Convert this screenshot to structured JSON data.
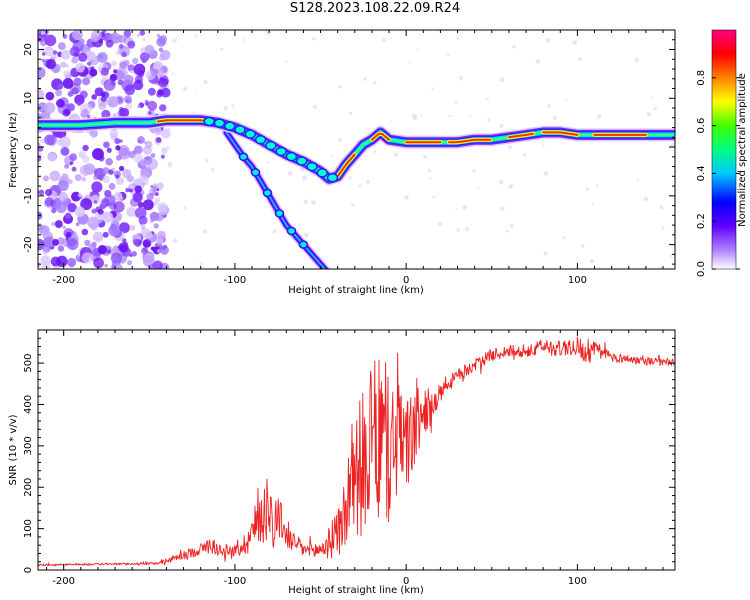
{
  "title": "S128.2023.108.22.09.R24",
  "chart_data": [
    {
      "type": "heatmap",
      "xlabel": "Height of straight line (km)",
      "ylabel": "Frequency (Hz)",
      "xlim": [
        -215,
        157
      ],
      "ylim": [
        -25,
        24
      ],
      "x_ticks": [
        -200,
        -100,
        0,
        100
      ],
      "y_ticks": [
        -20,
        -10,
        0,
        10,
        20
      ],
      "colorbar": {
        "label": "Normalized spectral amplitude",
        "range": [
          0,
          1
        ],
        "ticks": [
          0.0,
          0.2,
          0.4,
          0.6,
          0.8
        ],
        "colors": [
          "#ffffff",
          "#7a00ff",
          "#0000ff",
          "#00ffff",
          "#00ff00",
          "#ffff00",
          "#ff8000",
          "#ff0000",
          "#ff0080"
        ]
      },
      "main_track": {
        "x": [
          -215,
          -190,
          -170,
          -150,
          -140,
          -120,
          -110,
          -100,
          -90,
          -80,
          -70,
          -60,
          -50,
          -45,
          -40,
          -35,
          -30,
          -25,
          -20,
          -15,
          -10,
          0,
          10,
          20,
          30,
          40,
          50,
          60,
          70,
          80,
          90,
          100,
          110,
          120,
          130,
          140,
          157
        ],
        "y": [
          4.5,
          4.5,
          5,
          5,
          5.5,
          5.5,
          5,
          4,
          2.5,
          0.5,
          -1.5,
          -3,
          -5,
          -6.5,
          -6,
          -3.5,
          -1.5,
          0.5,
          1.5,
          3,
          1.5,
          1,
          1,
          1,
          1,
          1.5,
          1.5,
          2,
          2.5,
          3,
          3,
          2.5,
          2.5,
          2.5,
          2.5,
          2.5,
          2.5
        ]
      },
      "branch_track": {
        "x": [
          -105,
          -100,
          -95,
          -90,
          -85,
          -80,
          -75,
          -70,
          -65,
          -60,
          -55,
          -50,
          -45
        ],
        "y": [
          3,
          0.5,
          -2,
          -4,
          -7,
          -10,
          -13,
          -16,
          -18,
          -20,
          -22,
          -24,
          -26
        ]
      }
    },
    {
      "type": "line",
      "xlabel": "Height of straight line (km)",
      "ylabel": "SNR (10 * v/v)",
      "xlim": [
        -215,
        157
      ],
      "ylim": [
        0,
        580
      ],
      "x_ticks": [
        -200,
        -100,
        0,
        100
      ],
      "y_ticks": [
        0,
        100,
        200,
        300,
        400,
        500
      ],
      "color": "#ee2222",
      "x": [
        -215,
        -200,
        -180,
        -160,
        -145,
        -140,
        -130,
        -120,
        -115,
        -110,
        -100,
        -95,
        -90,
        -85,
        -80,
        -78,
        -75,
        -72,
        -70,
        -65,
        -60,
        -55,
        -50,
        -45,
        -40,
        -35,
        -30,
        -25,
        -20,
        -15,
        -10,
        -5,
        0,
        5,
        10,
        15,
        20,
        25,
        30,
        40,
        50,
        60,
        70,
        80,
        90,
        100,
        105,
        110,
        120,
        130,
        140,
        157
      ],
      "y": [
        12,
        13,
        14,
        15,
        16,
        22,
        35,
        50,
        60,
        50,
        45,
        60,
        90,
        130,
        160,
        120,
        130,
        110,
        80,
        65,
        50,
        45,
        50,
        65,
        90,
        150,
        230,
        260,
        300,
        330,
        280,
        320,
        300,
        340,
        380,
        400,
        420,
        450,
        470,
        495,
        520,
        530,
        525,
        540,
        535,
        545,
        520,
        530,
        515,
        510,
        505,
        500
      ],
      "noise_amplitude": [
        2,
        2,
        2,
        2,
        3,
        6,
        10,
        15,
        20,
        15,
        15,
        25,
        50,
        70,
        90,
        70,
        60,
        40,
        30,
        25,
        20,
        20,
        25,
        40,
        60,
        110,
        150,
        180,
        200,
        190,
        180,
        150,
        120,
        100,
        60,
        40,
        30,
        20,
        15,
        15,
        15,
        15,
        15,
        20,
        20,
        25,
        25,
        25,
        12,
        10,
        10,
        10
      ]
    }
  ]
}
